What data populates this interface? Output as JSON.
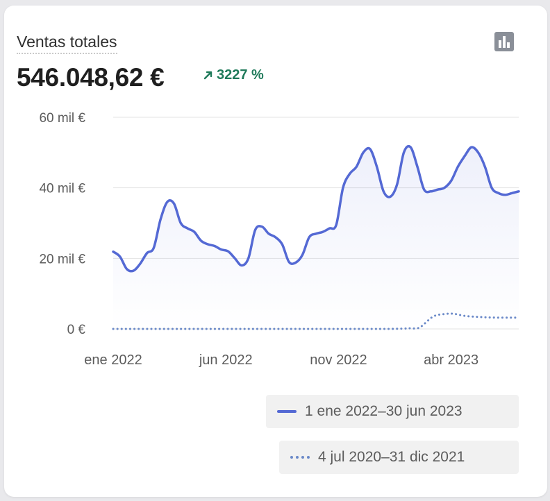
{
  "card": {
    "title": "Ventas totales",
    "total": "546.048,62 €",
    "change": "3227 %",
    "change_color": "#1f7a5a",
    "icon": "bar-chart-icon"
  },
  "chart_data": {
    "type": "line",
    "ylim": [
      0,
      60000
    ],
    "ytick_labels": [
      "60 mil €",
      "40 mil €",
      "20 mil €",
      "0 €"
    ],
    "ytick_values": [
      60000,
      40000,
      20000,
      0
    ],
    "xtick_labels": [
      "ene 2022",
      "jun 2022",
      "nov 2022",
      "abr 2023"
    ],
    "xtick_positions": [
      0,
      5,
      10,
      15
    ],
    "grid": true,
    "legend": "bottom-right",
    "series": [
      {
        "name": "1 ene 2022–30 jun 2023",
        "style": "solid",
        "color": "#5469d4",
        "fill": true,
        "x": [
          0,
          0.3,
          0.6,
          0.9,
          1.2,
          1.5,
          1.8,
          2.1,
          2.4,
          2.7,
          3.0,
          3.3,
          3.6,
          3.9,
          4.2,
          4.5,
          4.8,
          5.1,
          5.4,
          5.7,
          6.0,
          6.3,
          6.6,
          6.9,
          7.2,
          7.5,
          7.8,
          8.1,
          8.4,
          8.7,
          9.0,
          9.3,
          9.6,
          9.9,
          10.2,
          10.5,
          10.8,
          11.1,
          11.4,
          11.7,
          12.0,
          12.3,
          12.6,
          12.9,
          13.2,
          13.5,
          13.8,
          14.1,
          14.4,
          14.7,
          15.0,
          15.3,
          15.6,
          15.9,
          16.2,
          16.5,
          16.8,
          17.1,
          17.4,
          17.7,
          18.0
        ],
        "y": [
          21900,
          20500,
          17000,
          16500,
          18500,
          21500,
          23000,
          31000,
          36000,
          35500,
          30000,
          28500,
          27500,
          25000,
          24000,
          23500,
          22500,
          22000,
          20000,
          18000,
          20000,
          28000,
          29000,
          27000,
          26000,
          24000,
          19000,
          18800,
          21000,
          26000,
          27000,
          27500,
          28500,
          29500,
          40000,
          44000,
          46000,
          50000,
          51000,
          46000,
          39000,
          37500,
          41000,
          50000,
          51500,
          46000,
          39500,
          39000,
          39500,
          40000,
          42000,
          46000,
          49000,
          51500,
          50000,
          46000,
          40000,
          38500,
          38000,
          38500,
          39000
        ],
        "legend_label": "1 ene 2022–30 jun 2023"
      },
      {
        "name": "4 jul 2020–31 dic 2021",
        "style": "dotted",
        "color": "#6a89c8",
        "fill": false,
        "x": [
          0,
          1,
          2,
          3,
          4,
          5,
          6,
          7,
          8,
          9,
          10,
          11,
          12,
          12.3,
          12.9,
          13.2,
          13.6,
          14.2,
          14.7,
          15.1,
          15.6,
          16.2,
          17.0,
          18.0
        ],
        "y": [
          0,
          0,
          0,
          0,
          0,
          0,
          0,
          0,
          0,
          0,
          0,
          0,
          0,
          0,
          100,
          200,
          400,
          3500,
          4200,
          4300,
          3700,
          3400,
          3200,
          3200
        ],
        "legend_label": "4 jul 2020–31 dic 2021"
      }
    ]
  }
}
